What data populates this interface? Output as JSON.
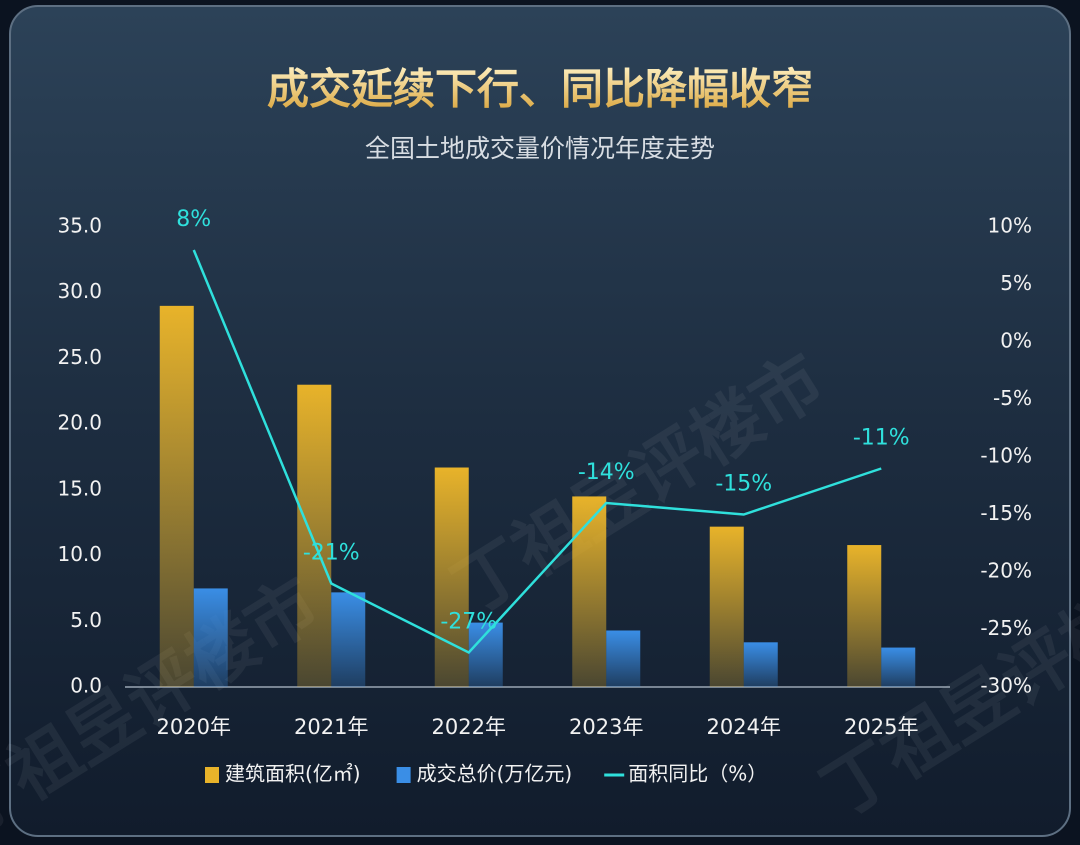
{
  "chart_data": {
    "type": "bar",
    "title": "成交延续下行、同比降幅收窄",
    "subtitle": "全国土地成交量价情况年度走势",
    "watermark": "丁祖昱评楼市",
    "categories": [
      "2020年",
      "2021年",
      "2022年",
      "2023年",
      "2024年",
      "2025年"
    ],
    "series": [
      {
        "name": "建筑面积(亿㎡)",
        "type": "bar",
        "color": "#e8b32a",
        "values": [
          29.0,
          23.0,
          16.7,
          14.5,
          12.2,
          10.8
        ]
      },
      {
        "name": "成交总价(万亿元)",
        "type": "bar",
        "color": "#3a8ee6",
        "values": [
          7.5,
          7.2,
          4.9,
          4.3,
          3.4,
          3.0
        ]
      },
      {
        "name": "面积同比（%）",
        "type": "line",
        "axis": "y2",
        "color": "#2fe0dc",
        "values": [
          8,
          -21,
          -27,
          -14,
          -15,
          -11
        ],
        "value_labels": [
          "8%",
          "-21%",
          "-27%",
          "-14%",
          "-15%",
          "-11%"
        ]
      }
    ],
    "ylim": [
      0,
      35
    ],
    "yticks": [
      {
        "value": 0,
        "label": "0.0"
      },
      {
        "value": 5,
        "label": "5.0"
      },
      {
        "value": 10,
        "label": "10.0"
      },
      {
        "value": 15,
        "label": "15.0"
      },
      {
        "value": 20,
        "label": "20.0"
      },
      {
        "value": 25,
        "label": "25.0"
      },
      {
        "value": 30,
        "label": "30.0"
      },
      {
        "value": 35,
        "label": "35.0"
      }
    ],
    "y2lim": [
      -30,
      10
    ],
    "y2ticks": [
      {
        "value": -30,
        "label": "-30%"
      },
      {
        "value": -25,
        "label": "-25%"
      },
      {
        "value": -20,
        "label": "-20%"
      },
      {
        "value": -15,
        "label": "-15%"
      },
      {
        "value": -10,
        "label": "-10%"
      },
      {
        "value": -5,
        "label": "-5%"
      },
      {
        "value": 0,
        "label": "0%"
      },
      {
        "value": 5,
        "label": "5%"
      },
      {
        "value": 10,
        "label": "10%"
      }
    ],
    "legend": "bottom"
  }
}
